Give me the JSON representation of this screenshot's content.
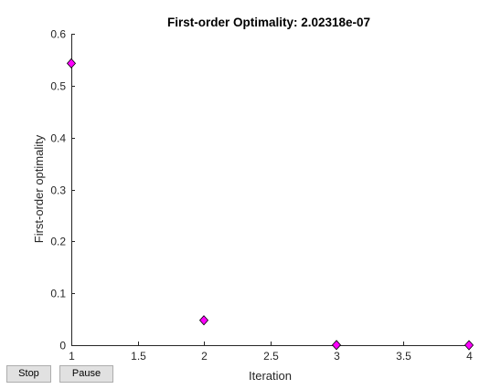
{
  "figure": {
    "title": "First-order Optimality: 2.02318e-07"
  },
  "buttons": {
    "stop_label": "Stop",
    "pause_label": "Pause"
  },
  "colors": {
    "marker_fill": "#ff00ff",
    "marker_edge": "#000000",
    "axis": "#262626"
  },
  "chart_data": {
    "type": "scatter",
    "title": "First-order Optimality: 2.02318e-07",
    "xlabel": "Iteration",
    "ylabel": "First-order optimality",
    "xlim": [
      1,
      4
    ],
    "ylim": [
      0,
      0.6
    ],
    "xticks": [
      "1",
      "1.5",
      "2",
      "2.5",
      "3",
      "3.5",
      "4"
    ],
    "yticks": [
      "0",
      "0.1",
      "0.2",
      "0.3",
      "0.4",
      "0.5",
      "0.6"
    ],
    "marker": "diamond",
    "grid": false,
    "box": false,
    "series": [
      {
        "x": [
          1,
          2,
          3,
          4
        ],
        "y": [
          0.543,
          0.048,
          0.0003,
          2e-07
        ]
      }
    ]
  }
}
